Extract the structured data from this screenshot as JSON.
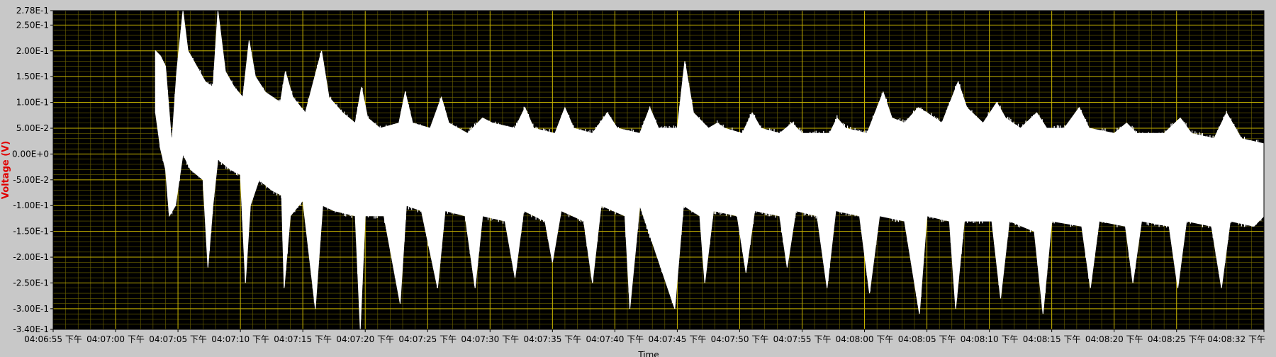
{
  "chart_data": {
    "type": "line",
    "title": "",
    "xlabel": "Time",
    "ylabel": "Voltage (V)",
    "ylim": [
      -0.34,
      0.278
    ],
    "xlim": [
      "04:06:55 下午",
      "04:08:32 下午"
    ],
    "grid": true,
    "colors": {
      "plot_background": "#000000",
      "frame": "#c8c8c8",
      "grid_major": "#c8b400",
      "grid_minor": "#6e6400",
      "trace": "#ffffff",
      "ylabel": "#e00000"
    },
    "y_ticks": [
      {
        "label": "2.78E-1",
        "value": 0.278
      },
      {
        "label": "2.50E-1",
        "value": 0.25
      },
      {
        "label": "2.00E-1",
        "value": 0.2
      },
      {
        "label": "1.50E-1",
        "value": 0.15
      },
      {
        "label": "1.00E-1",
        "value": 0.1
      },
      {
        "label": "5.00E-2",
        "value": 0.05
      },
      {
        "label": "0.00E+0",
        "value": 0.0
      },
      {
        "label": "-5.00E-2",
        "value": -0.05
      },
      {
        "label": "-1.00E-1",
        "value": -0.1
      },
      {
        "label": "-1.50E-1",
        "value": -0.15
      },
      {
        "label": "-2.00E-1",
        "value": -0.2
      },
      {
        "label": "-2.50E-1",
        "value": -0.25
      },
      {
        "label": "-3.00E-1",
        "value": -0.3
      },
      {
        "label": "-3.40E-1",
        "value": -0.34
      }
    ],
    "x_ticks": [
      {
        "label": "04:06:55 下午",
        "t": 0
      },
      {
        "label": "04:07:00 下午",
        "t": 5
      },
      {
        "label": "04:07:05 下午",
        "t": 10
      },
      {
        "label": "04:07:10 下午",
        "t": 15
      },
      {
        "label": "04:07:15 下午",
        "t": 20
      },
      {
        "label": "04:07:20 下午",
        "t": 25
      },
      {
        "label": "04:07:25 下午",
        "t": 30
      },
      {
        "label": "04:07:30 下午",
        "t": 35
      },
      {
        "label": "04:07:35 下午",
        "t": 40
      },
      {
        "label": "04:07:40 下午",
        "t": 45
      },
      {
        "label": "04:07:45 下午",
        "t": 50
      },
      {
        "label": "04:07:50 下午",
        "t": 55
      },
      {
        "label": "04:07:55 下午",
        "t": 60
      },
      {
        "label": "04:08:00 下午",
        "t": 65
      },
      {
        "label": "04:08:05 下午",
        "t": 70
      },
      {
        "label": "04:08:10 下午",
        "t": 75
      },
      {
        "label": "04:08:15 下午",
        "t": 80
      },
      {
        "label": "04:08:20 下午",
        "t": 85
      },
      {
        "label": "04:08:25 下午",
        "t": 90
      },
      {
        "label": "04:08:32 下午",
        "t": 97
      }
    ],
    "series": [
      {
        "data_start": "04:07:03 下午",
        "data_end": "04:08:32 下午",
        "envelope_upper": [
          [
            8.2,
            0.2
          ],
          [
            8.6,
            0.19
          ],
          [
            9.0,
            0.17
          ],
          [
            9.5,
            0.02
          ],
          [
            9.9,
            0.16
          ],
          [
            10.4,
            0.278
          ],
          [
            10.8,
            0.2
          ],
          [
            11.5,
            0.17
          ],
          [
            12.2,
            0.14
          ],
          [
            12.8,
            0.13
          ],
          [
            13.2,
            0.278
          ],
          [
            13.8,
            0.16
          ],
          [
            14.5,
            0.13
          ],
          [
            15.2,
            0.11
          ],
          [
            15.7,
            0.22
          ],
          [
            16.2,
            0.15
          ],
          [
            17.0,
            0.12
          ],
          [
            18.2,
            0.1
          ],
          [
            18.6,
            0.16
          ],
          [
            19.2,
            0.11
          ],
          [
            20.2,
            0.08
          ],
          [
            21.5,
            0.2
          ],
          [
            22.1,
            0.11
          ],
          [
            23.2,
            0.08
          ],
          [
            24.2,
            0.06
          ],
          [
            24.7,
            0.13
          ],
          [
            25.2,
            0.07
          ],
          [
            26.2,
            0.05
          ],
          [
            27.7,
            0.06
          ],
          [
            28.2,
            0.12
          ],
          [
            28.8,
            0.06
          ],
          [
            30.2,
            0.05
          ],
          [
            31.1,
            0.11
          ],
          [
            31.7,
            0.06
          ],
          [
            33.2,
            0.04
          ],
          [
            34.4,
            0.07
          ],
          [
            35.2,
            0.06
          ],
          [
            37.0,
            0.05
          ],
          [
            37.8,
            0.09
          ],
          [
            38.5,
            0.05
          ],
          [
            40.2,
            0.04
          ],
          [
            41.0,
            0.09
          ],
          [
            41.7,
            0.05
          ],
          [
            43.2,
            0.04
          ],
          [
            44.4,
            0.08
          ],
          [
            45.2,
            0.05
          ],
          [
            47.0,
            0.04
          ],
          [
            47.8,
            0.09
          ],
          [
            48.5,
            0.05
          ],
          [
            50.0,
            0.05
          ],
          [
            50.6,
            0.18
          ],
          [
            51.3,
            0.08
          ],
          [
            52.5,
            0.05
          ],
          [
            53.2,
            0.06
          ],
          [
            53.8,
            0.05
          ],
          [
            55.2,
            0.04
          ],
          [
            56.0,
            0.08
          ],
          [
            56.7,
            0.05
          ],
          [
            58.2,
            0.04
          ],
          [
            59.2,
            0.06
          ],
          [
            60.0,
            0.04
          ],
          [
            62.2,
            0.04
          ],
          [
            62.8,
            0.07
          ],
          [
            63.5,
            0.05
          ],
          [
            65.2,
            0.04
          ],
          [
            66.5,
            0.12
          ],
          [
            67.2,
            0.07
          ],
          [
            68.2,
            0.06
          ],
          [
            69.3,
            0.09
          ],
          [
            70.0,
            0.08
          ],
          [
            71.2,
            0.06
          ],
          [
            72.5,
            0.14
          ],
          [
            73.2,
            0.09
          ],
          [
            74.5,
            0.06
          ],
          [
            75.6,
            0.1
          ],
          [
            76.3,
            0.07
          ],
          [
            77.5,
            0.05
          ],
          [
            78.8,
            0.08
          ],
          [
            79.6,
            0.05
          ],
          [
            81.0,
            0.05
          ],
          [
            82.2,
            0.09
          ],
          [
            83.0,
            0.05
          ],
          [
            85.0,
            0.04
          ],
          [
            86.0,
            0.06
          ],
          [
            86.8,
            0.04
          ],
          [
            89.0,
            0.04
          ],
          [
            90.3,
            0.07
          ],
          [
            91.2,
            0.04
          ],
          [
            93.0,
            0.03
          ],
          [
            94.0,
            0.08
          ],
          [
            95.2,
            0.03
          ],
          [
            97.0,
            0.02
          ]
        ],
        "envelope_lower": [
          [
            8.2,
            0.08
          ],
          [
            8.6,
            0.01
          ],
          [
            9.0,
            -0.03
          ],
          [
            9.3,
            -0.12
          ],
          [
            9.8,
            -0.1
          ],
          [
            10.4,
            0.0
          ],
          [
            11.0,
            -0.03
          ],
          [
            12.0,
            -0.05
          ],
          [
            12.4,
            -0.22
          ],
          [
            12.8,
            -0.1
          ],
          [
            13.2,
            -0.01
          ],
          [
            14.2,
            -0.03
          ],
          [
            15.0,
            -0.04
          ],
          [
            15.4,
            -0.25
          ],
          [
            15.8,
            -0.1
          ],
          [
            16.5,
            -0.05
          ],
          [
            17.5,
            -0.07
          ],
          [
            18.3,
            -0.08
          ],
          [
            18.5,
            -0.26
          ],
          [
            19.0,
            -0.12
          ],
          [
            20.0,
            -0.09
          ],
          [
            21.0,
            -0.3
          ],
          [
            21.6,
            -0.1
          ],
          [
            22.5,
            -0.11
          ],
          [
            24.2,
            -0.12
          ],
          [
            24.6,
            -0.34
          ],
          [
            25.0,
            -0.12
          ],
          [
            26.5,
            -0.12
          ],
          [
            27.8,
            -0.29
          ],
          [
            28.3,
            -0.1
          ],
          [
            29.5,
            -0.11
          ],
          [
            30.8,
            -0.26
          ],
          [
            31.4,
            -0.11
          ],
          [
            33.0,
            -0.12
          ],
          [
            33.8,
            -0.26
          ],
          [
            34.4,
            -0.12
          ],
          [
            36.2,
            -0.13
          ],
          [
            37.0,
            -0.24
          ],
          [
            37.7,
            -0.11
          ],
          [
            39.4,
            -0.13
          ],
          [
            40.0,
            -0.21
          ],
          [
            40.7,
            -0.11
          ],
          [
            42.5,
            -0.13
          ],
          [
            43.2,
            -0.25
          ],
          [
            43.9,
            -0.1
          ],
          [
            45.8,
            -0.12
          ],
          [
            46.2,
            -0.3
          ],
          [
            47.0,
            -0.1
          ],
          [
            49.8,
            -0.3
          ],
          [
            50.5,
            -0.1
          ],
          [
            51.8,
            -0.12
          ],
          [
            52.2,
            -0.25
          ],
          [
            52.9,
            -0.11
          ],
          [
            54.8,
            -0.12
          ],
          [
            55.5,
            -0.23
          ],
          [
            56.2,
            -0.11
          ],
          [
            58.2,
            -0.12
          ],
          [
            58.8,
            -0.22
          ],
          [
            59.5,
            -0.11
          ],
          [
            61.2,
            -0.12
          ],
          [
            62.0,
            -0.26
          ],
          [
            62.7,
            -0.11
          ],
          [
            64.6,
            -0.12
          ],
          [
            65.4,
            -0.27
          ],
          [
            66.2,
            -0.12
          ],
          [
            68.2,
            -0.13
          ],
          [
            69.4,
            -0.31
          ],
          [
            70.0,
            -0.12
          ],
          [
            71.8,
            -0.13
          ],
          [
            72.3,
            -0.3
          ],
          [
            73.0,
            -0.13
          ],
          [
            75.2,
            -0.13
          ],
          [
            75.9,
            -0.28
          ],
          [
            76.6,
            -0.13
          ],
          [
            78.6,
            -0.15
          ],
          [
            79.3,
            -0.31
          ],
          [
            80.0,
            -0.13
          ],
          [
            82.4,
            -0.14
          ],
          [
            83.1,
            -0.26
          ],
          [
            83.8,
            -0.13
          ],
          [
            85.9,
            -0.14
          ],
          [
            86.5,
            -0.25
          ],
          [
            87.2,
            -0.13
          ],
          [
            89.4,
            -0.14
          ],
          [
            90.1,
            -0.26
          ],
          [
            90.8,
            -0.13
          ],
          [
            92.8,
            -0.14
          ],
          [
            93.6,
            -0.26
          ],
          [
            94.3,
            -0.13
          ],
          [
            96.2,
            -0.14
          ],
          [
            97.0,
            -0.12
          ]
        ]
      }
    ]
  }
}
